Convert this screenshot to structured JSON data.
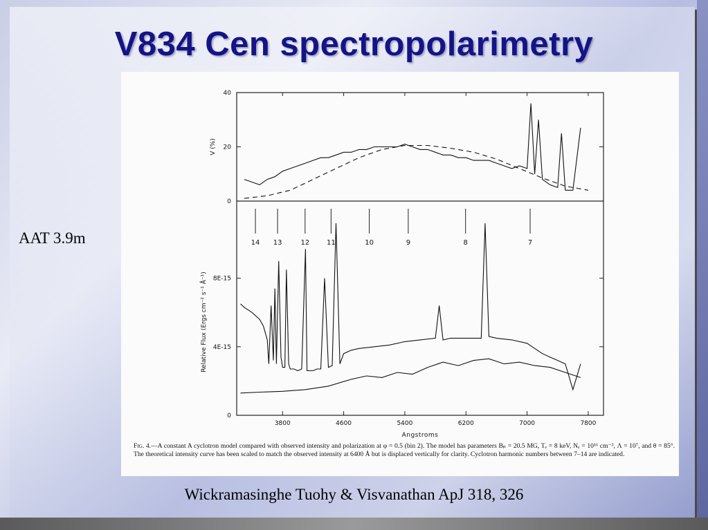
{
  "slide": {
    "title": "V834 Cen spectropolarimetry",
    "side_label": "AAT 3.9m",
    "citation": "Wickramasinghe Tuohy & Visvanathan ApJ 318, 326"
  },
  "figure": {
    "caption_lead": "Fig. 4.",
    "caption_text": "—A constant A cyclotron model compared with observed intensity and polarization at φ = 0.5 (bin 2). The model has parameters Bₚ = 20.5 MG, Tₑ = 8 keV, Nₑ = 10¹⁶ cm⁻³, Λ = 10⁷, and θ = 85°. The theoretical intensity curve has been scaled to match the observed intensity at 6400 Å but is displaced vertically for clarity. Cyclotron harmonic numbers between 7–14 are indicated."
  },
  "chart_data": [
    {
      "type": "line",
      "panel": "polarization",
      "ylabel": "V (%)",
      "ylim": [
        0,
        40
      ],
      "yticks": [
        "0",
        "20",
        "40"
      ],
      "xlim": [
        3200,
        8000
      ],
      "series": [
        {
          "style": "solid",
          "x": [
            3300,
            3400,
            3500,
            3600,
            3700,
            3800,
            3900,
            4000,
            4100,
            4200,
            4300,
            4400,
            4500,
            4600,
            4700,
            4800,
            4900,
            5000,
            5100,
            5200,
            5300,
            5400,
            5500,
            5600,
            5700,
            5800,
            5900,
            6000,
            6100,
            6200,
            6300,
            6400,
            6500,
            6600,
            6700,
            6800,
            6900,
            7000,
            7050,
            7100,
            7150,
            7200,
            7300,
            7400,
            7450,
            7500,
            7600,
            7700
          ],
          "y": [
            8,
            7,
            6,
            8,
            9,
            11,
            12,
            13,
            14,
            15,
            16,
            16,
            17,
            18,
            18,
            19,
            19,
            20,
            20,
            20,
            20,
            21,
            20,
            19,
            19,
            18,
            17,
            17,
            16,
            16,
            15,
            15,
            15,
            14,
            13,
            12,
            13,
            12,
            36,
            10,
            30,
            8,
            6,
            5,
            25,
            4,
            4,
            27
          ]
        },
        {
          "style": "dashed",
          "x": [
            3300,
            3600,
            3900,
            4200,
            4500,
            4800,
            5100,
            5400,
            5700,
            6000,
            6300,
            6600,
            6900,
            7200,
            7500,
            7800
          ],
          "y": [
            1,
            2,
            4,
            8,
            12,
            16,
            19,
            20.5,
            20.5,
            19.5,
            18,
            15.5,
            12,
            8.5,
            5.5,
            4
          ]
        }
      ]
    },
    {
      "type": "line",
      "panel": "flux",
      "xlabel": "Angstroms",
      "ylabel": "Relative Flux (Ergs cm⁻² s⁻¹ Å⁻¹)",
      "xticks": [
        3800,
        4600,
        5400,
        6200,
        7000,
        7800
      ],
      "yticks": [
        "0",
        "4E-15",
        "8E-15"
      ],
      "ylim": [
        0,
        1.25e-14
      ],
      "xlim": [
        3200,
        8000
      ],
      "harmonics": [
        {
          "label": "14",
          "x": 3445
        },
        {
          "label": "13",
          "x": 3735
        },
        {
          "label": "12",
          "x": 4095
        },
        {
          "label": "11",
          "x": 4435
        },
        {
          "label": "10",
          "x": 4935
        },
        {
          "label": "9",
          "x": 5445
        },
        {
          "label": "8",
          "x": 6195
        },
        {
          "label": "7",
          "x": 7040
        }
      ],
      "series": [
        {
          "style": "solid",
          "name": "observed",
          "x": [
            3250,
            3300,
            3400,
            3500,
            3550,
            3600,
            3620,
            3650,
            3680,
            3700,
            3720,
            3750,
            3780,
            3800,
            3830,
            3850,
            3880,
            3900,
            3950,
            4000,
            4050,
            4100,
            4120,
            4150,
            4200,
            4250,
            4300,
            4350,
            4400,
            4450,
            4500,
            4550,
            4600,
            4700,
            4800,
            5000,
            5200,
            5400,
            5600,
            5800,
            5850,
            5900,
            6000,
            6200,
            6400,
            6450,
            6500,
            6600,
            6800,
            7000,
            7100,
            7200,
            7300,
            7400,
            7500,
            7600,
            7700
          ],
          "y": [
            6.5e-15,
            6.3e-15,
            6e-15,
            5.6e-15,
            5.2e-15,
            4.4e-15,
            3e-15,
            6.4e-15,
            3.2e-15,
            7.4e-15,
            3e-15,
            9e-15,
            3.4e-15,
            2.8e-15,
            2.8e-15,
            8.5e-15,
            3e-15,
            2.7e-15,
            2.7e-15,
            2.6e-15,
            2.7e-15,
            9.7e-15,
            2.6e-15,
            2.6e-15,
            2.6e-15,
            2.7e-15,
            2.7e-15,
            8e-15,
            2.8e-15,
            2.9e-15,
            1.12e-14,
            3e-15,
            3.6e-15,
            3.8e-15,
            3.9e-15,
            4e-15,
            4.1e-15,
            4.3e-15,
            4.4e-15,
            4.5e-15,
            6.4e-15,
            4.4e-15,
            4.5e-15,
            4.5e-15,
            4.5e-15,
            1.12e-14,
            4.6e-15,
            4.5e-15,
            4.4e-15,
            4.2e-15,
            3.9e-15,
            3.6e-15,
            3.4e-15,
            3.2e-15,
            3e-15,
            1.5e-15,
            3e-15
          ]
        },
        {
          "style": "solid",
          "name": "model",
          "x": [
            3250,
            3500,
            3800,
            4100,
            4400,
            4700,
            4900,
            5100,
            5300,
            5500,
            5700,
            5900,
            6100,
            6300,
            6500,
            6700,
            6900,
            7100,
            7300,
            7500,
            7700
          ],
          "y": [
            1.3e-15,
            1.35e-15,
            1.4e-15,
            1.5e-15,
            1.7e-15,
            2.1e-15,
            2.3e-15,
            2.2e-15,
            2.5e-15,
            2.4e-15,
            2.8e-15,
            3.1e-15,
            2.9e-15,
            3.2e-15,
            3.3e-15,
            3e-15,
            3.1e-15,
            2.9e-15,
            2.8e-15,
            2.5e-15,
            2.2e-15
          ]
        }
      ]
    }
  ]
}
